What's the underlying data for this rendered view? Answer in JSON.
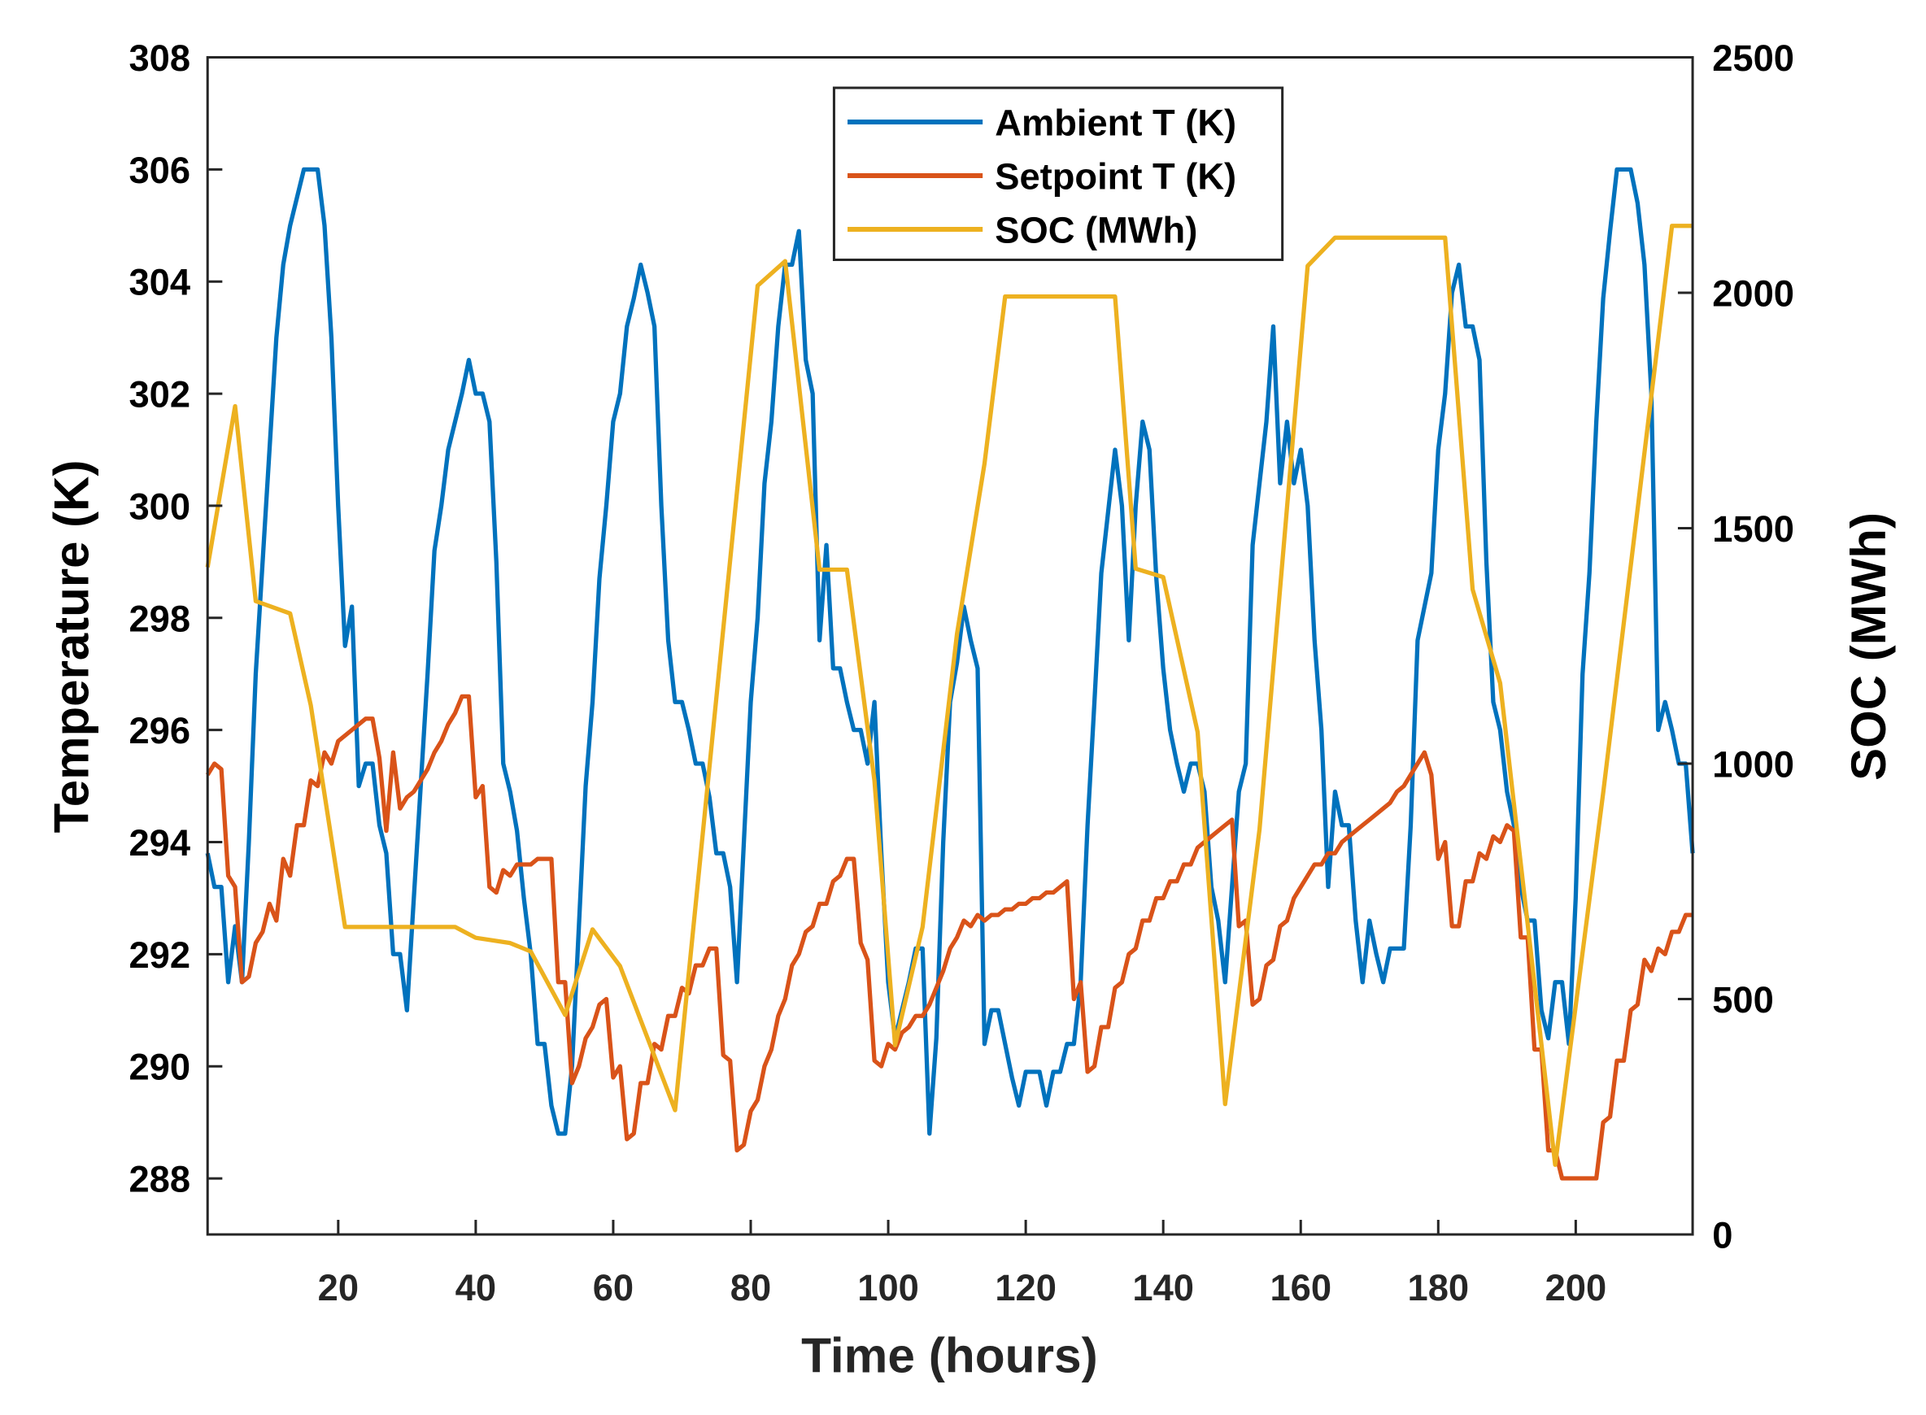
{
  "chart_data": {
    "type": "line",
    "xlabel": "Time (hours)",
    "ylabel": "Temperature (K)",
    "ylabel_right": "SOC (MWh)",
    "xlim": [
      1,
      217
    ],
    "ylim": [
      287,
      308
    ],
    "ylim_right": [
      0,
      2500
    ],
    "xticks": [
      20,
      40,
      60,
      80,
      100,
      120,
      140,
      160,
      180,
      200
    ],
    "yticks": [
      288,
      290,
      292,
      294,
      296,
      298,
      300,
      302,
      304,
      306,
      308
    ],
    "yticks_right": [
      0,
      500,
      1000,
      1500,
      2000,
      2500
    ],
    "grid": false,
    "legend_position": "top-center",
    "series": [
      {
        "name": "Ambient T (K)",
        "axis": "left",
        "color": "#0072BD",
        "x_start": 1,
        "x_step": 1,
        "values": [
          293.8,
          293.2,
          293.2,
          291.5,
          292.5,
          291.5,
          294,
          297,
          299,
          301,
          303,
          304.3,
          305,
          305.5,
          306,
          306,
          306,
          305,
          303,
          300,
          297.5,
          298.2,
          295,
          295.4,
          295.4,
          294.3,
          293.8,
          292,
          292,
          291,
          293,
          295,
          297,
          299.2,
          300,
          301,
          301.5,
          302,
          302.6,
          302,
          302,
          301.5,
          299,
          295.4,
          294.9,
          294.2,
          293,
          292,
          290.4,
          290.4,
          289.3,
          288.8,
          288.8,
          290,
          292.5,
          295,
          296.5,
          298.7,
          300,
          301.5,
          302,
          303.2,
          303.7,
          304.3,
          303.8,
          303.2,
          300,
          297.6,
          296.5,
          296.5,
          296,
          295.4,
          295.4,
          294.8,
          293.8,
          293.8,
          293.2,
          291.5,
          294,
          296.5,
          298,
          300.4,
          301.5,
          303.2,
          304.3,
          304.3,
          304.9,
          302.6,
          302,
          297.6,
          299.3,
          297.1,
          297.1,
          296.5,
          296,
          296,
          295.4,
          296.5,
          293.8,
          291.5,
          290.5,
          291,
          291.5,
          292.1,
          292.1,
          288.8,
          290.5,
          294,
          296.5,
          297.2,
          298.2,
          297.6,
          297.1,
          290.4,
          291,
          291,
          290.4,
          289.8,
          289.3,
          289.9,
          289.9,
          289.9,
          289.3,
          289.9,
          289.9,
          290.4,
          290.4,
          291.5,
          294.3,
          296.5,
          298.8,
          299.9,
          301,
          300,
          297.6,
          300,
          301.5,
          301,
          298.7,
          297.1,
          296,
          295.4,
          294.9,
          295.4,
          295.4,
          294.9,
          293.2,
          292.6,
          291.5,
          293.2,
          294.9,
          295.4,
          299.3,
          300.4,
          301.5,
          303.2,
          300.4,
          301.5,
          300.4,
          301,
          300,
          297.6,
          296,
          293.2,
          294.9,
          294.3,
          294.3,
          292.6,
          291.5,
          292.6,
          292,
          291.5,
          292.1,
          292.1,
          292.1,
          294.3,
          297.6,
          298.2,
          298.8,
          301,
          302,
          303.8,
          304.3,
          303.2,
          303.2,
          302.6,
          299,
          296.5,
          296,
          294.9,
          294.3,
          293.2,
          292.6,
          292.6,
          291,
          290.5,
          291.5,
          291.5,
          290.4,
          293,
          297,
          298.8,
          301.5,
          303.7,
          304.9,
          306,
          306,
          306,
          305.4,
          304.3,
          302,
          296,
          296.5,
          296,
          295.4,
          295.4,
          293.8
        ]
      },
      {
        "name": "Setpoint T (K)",
        "axis": "left",
        "color": "#D95319",
        "x_start": 1,
        "x_step": 1,
        "values": [
          295.2,
          295.4,
          295.3,
          293.4,
          293.2,
          291.5,
          291.6,
          292.2,
          292.4,
          292.9,
          292.6,
          293.7,
          293.4,
          294.3,
          294.3,
          295.1,
          295.0,
          295.6,
          295.4,
          295.8,
          295.9,
          296.0,
          296.1,
          296.2,
          296.2,
          295.5,
          294.2,
          295.6,
          294.6,
          294.8,
          294.9,
          295.1,
          295.3,
          295.6,
          295.8,
          296.1,
          296.3,
          296.6,
          296.6,
          294.8,
          295.0,
          293.2,
          293.1,
          293.5,
          293.4,
          293.6,
          293.6,
          293.6,
          293.7,
          293.7,
          293.7,
          291.5,
          291.5,
          289.7,
          290.0,
          290.5,
          290.7,
          291.1,
          291.2,
          289.8,
          290.0,
          288.7,
          288.8,
          289.7,
          289.7,
          290.4,
          290.3,
          290.9,
          290.9,
          291.4,
          291.3,
          291.8,
          291.8,
          292.1,
          292.1,
          290.2,
          290.1,
          288.5,
          288.6,
          289.2,
          289.4,
          290.0,
          290.3,
          290.9,
          291.2,
          291.8,
          292.0,
          292.4,
          292.5,
          292.9,
          292.9,
          293.3,
          293.4,
          293.7,
          293.7,
          292.2,
          291.9,
          290.1,
          290.0,
          290.4,
          290.3,
          290.6,
          290.7,
          290.9,
          290.9,
          291.1,
          291.4,
          291.7,
          292.1,
          292.3,
          292.6,
          292.5,
          292.7,
          292.6,
          292.7,
          292.7,
          292.8,
          292.8,
          292.9,
          292.9,
          293.0,
          293.0,
          293.1,
          293.1,
          293.2,
          293.3,
          291.2,
          291.5,
          289.9,
          290.0,
          290.7,
          290.7,
          291.4,
          291.5,
          292.0,
          292.1,
          292.6,
          292.6,
          293.0,
          293.0,
          293.3,
          293.3,
          293.6,
          293.6,
          293.9,
          294.0,
          294.1,
          294.2,
          294.3,
          294.4,
          292.5,
          292.6,
          291.1,
          291.2,
          291.8,
          291.9,
          292.5,
          292.6,
          293.0,
          293.2,
          293.4,
          293.6,
          293.6,
          293.8,
          293.8,
          294.0,
          294.1,
          294.2,
          294.3,
          294.4,
          294.5,
          294.6,
          294.7,
          294.9,
          295.0,
          295.2,
          295.4,
          295.6,
          295.2,
          293.7,
          294.0,
          292.5,
          292.5,
          293.3,
          293.3,
          293.8,
          293.7,
          294.1,
          294.0,
          294.3,
          294.2,
          292.3,
          292.3,
          290.3,
          290.3,
          288.5,
          288.5,
          288.0,
          288.0,
          288.0,
          288.0,
          288.0,
          288.0,
          289.0,
          289.1,
          290.1,
          290.1,
          291.0,
          291.1,
          291.9,
          291.7,
          292.1,
          292.0,
          292.4,
          292.4,
          292.7,
          292.7
        ]
      },
      {
        "name": "SOC (MWh)",
        "axis": "right",
        "color": "#EDB120",
        "points": [
          [
            1,
            1417
          ],
          [
            5,
            1759
          ],
          [
            8,
            1345
          ],
          [
            13,
            1319
          ],
          [
            16,
            1124
          ],
          [
            21,
            653
          ],
          [
            37,
            653
          ],
          [
            40,
            630
          ],
          [
            45,
            619
          ],
          [
            48,
            601
          ],
          [
            53,
            466
          ],
          [
            57,
            648
          ],
          [
            61,
            570
          ],
          [
            69,
            264
          ],
          [
            81,
            2015
          ],
          [
            85,
            2067
          ],
          [
            90,
            1412
          ],
          [
            94,
            1412
          ],
          [
            98,
            964
          ],
          [
            101,
            402
          ],
          [
            105,
            653
          ],
          [
            110,
            1275
          ],
          [
            114,
            1637
          ],
          [
            117,
            1992
          ],
          [
            133,
            1992
          ],
          [
            136,
            1414
          ],
          [
            140,
            1396
          ],
          [
            145,
            1067
          ],
          [
            149,
            277
          ],
          [
            154,
            860
          ],
          [
            161,
            2057
          ],
          [
            165,
            2117
          ],
          [
            181,
            2117
          ],
          [
            185,
            1370
          ],
          [
            189,
            1171
          ],
          [
            197,
            148
          ],
          [
            204,
            938
          ],
          [
            214,
            2142
          ],
          [
            217,
            2142
          ]
        ]
      }
    ]
  }
}
